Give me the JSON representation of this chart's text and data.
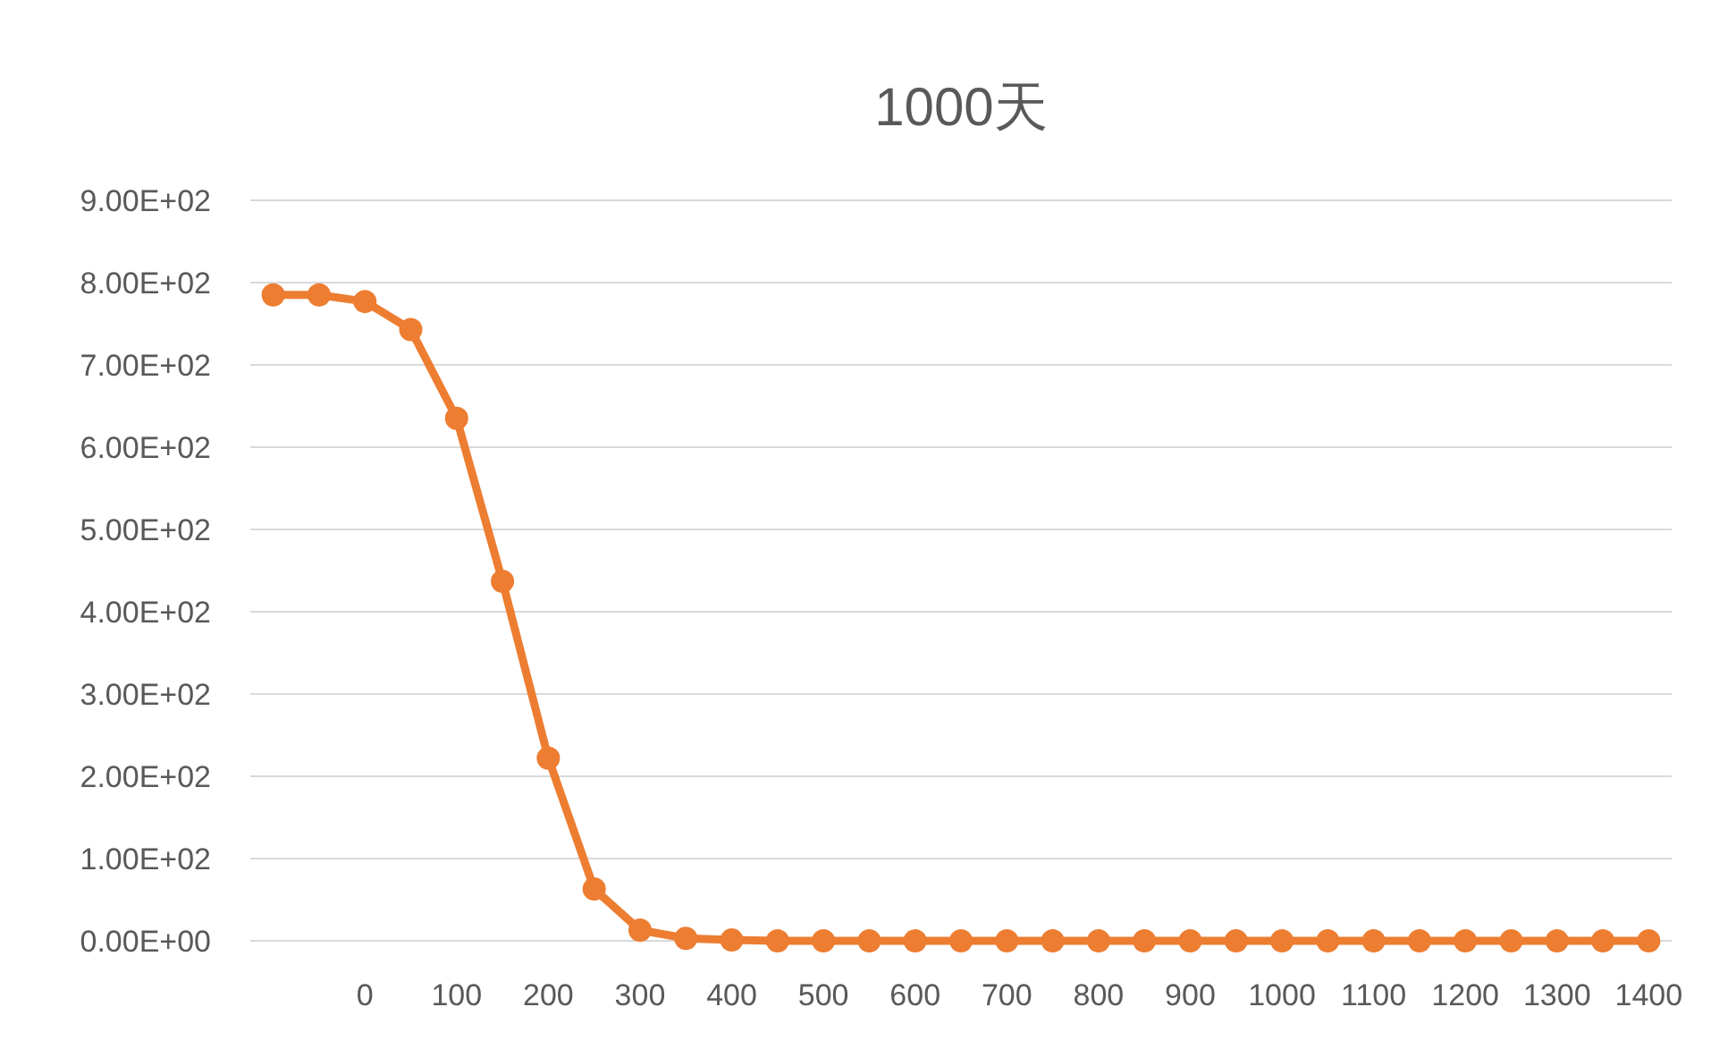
{
  "chart_data": {
    "type": "line",
    "title": "1000天",
    "categories": [
      null,
      null,
      "0",
      null,
      "100",
      null,
      "200",
      null,
      "300",
      null,
      "400",
      null,
      "500",
      null,
      "600",
      null,
      "700",
      null,
      "800",
      null,
      "900",
      null,
      "1000",
      null,
      "1100",
      null,
      "1200",
      null,
      "1300",
      null,
      "1400"
    ],
    "series": [
      {
        "color": "#ed7d31",
        "values": [
          785,
          785,
          777,
          743,
          635,
          437,
          222,
          63,
          13,
          3,
          1,
          0,
          0,
          0,
          0,
          0,
          0,
          0,
          0,
          0,
          0,
          0,
          0,
          0,
          0,
          0,
          0,
          0,
          0,
          0,
          0
        ]
      }
    ],
    "ylim": [
      0,
      900
    ],
    "yticks": [
      {
        "value": 0,
        "label": "0.00E+00"
      },
      {
        "value": 100,
        "label": "1.00E+02"
      },
      {
        "value": 200,
        "label": "2.00E+02"
      },
      {
        "value": 300,
        "label": "3.00E+02"
      },
      {
        "value": 400,
        "label": "4.00E+02"
      },
      {
        "value": 500,
        "label": "5.00E+02"
      },
      {
        "value": 600,
        "label": "6.00E+02"
      },
      {
        "value": 700,
        "label": "7.00E+02"
      },
      {
        "value": 800,
        "label": "8.00E+02"
      },
      {
        "value": 900,
        "label": "9.00E+02"
      }
    ],
    "grid": "y",
    "marker": "circle",
    "line_style": "solid"
  }
}
